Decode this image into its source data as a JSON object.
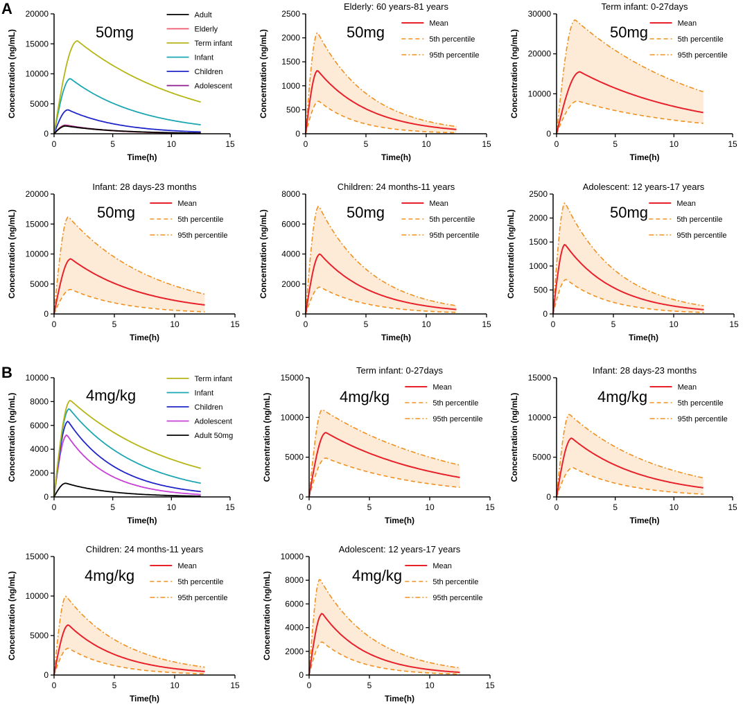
{
  "figure": {
    "panel_labels": [
      "A",
      "B"
    ],
    "legend_labels": {
      "mean": "Mean",
      "p5": "5th percentile",
      "p95": "95th percentile"
    }
  },
  "colors": {
    "mean": "#e8202a",
    "percentile": "#f0901e",
    "band": "#fdebd8",
    "Adult": "#000000",
    "Elderly": "#f0576b",
    "Term infant": "#b5b515",
    "Infant": "#1aa6b0",
    "Children": "#1f24c8",
    "Adolescent": "#8e1a8e",
    "Adolescent_B": "#c63fd6",
    "Adult 50mg": "#000000"
  },
  "chart_data": [
    {
      "id": "A1",
      "type": "line",
      "panel": "A",
      "title": "",
      "dose_label": "50mg",
      "xlabel": "Time(h)",
      "ylabel": "Concentration (ng/mL)",
      "xlim": [
        0,
        15
      ],
      "xticks": [
        0,
        5,
        10,
        15
      ],
      "ylim": [
        0,
        20000
      ],
      "yticks": [
        0,
        5000,
        10000,
        15000,
        20000
      ],
      "series": [
        {
          "name": "Adult",
          "color_key": "Adult",
          "peak": 1300,
          "tmax": 1.0,
          "end": 100
        },
        {
          "name": "Elderly",
          "color_key": "Elderly",
          "peak": 1350,
          "tmax": 1.0,
          "end": 80
        },
        {
          "name": "Term infant",
          "color_key": "Term infant",
          "peak": 15500,
          "tmax": 2.0,
          "end": 5300
        },
        {
          "name": "Infant",
          "color_key": "Infant",
          "peak": 9200,
          "tmax": 1.4,
          "end": 1500
        },
        {
          "name": "Children",
          "color_key": "Children",
          "peak": 4000,
          "tmax": 1.2,
          "end": 300
        },
        {
          "name": "Adolescent",
          "color_key": "Adolescent",
          "peak": 1450,
          "tmax": 1.0,
          "end": 80
        }
      ]
    },
    {
      "id": "A2",
      "type": "line",
      "panel": "A",
      "title": "Elderly: 60 years-81 years",
      "dose_label": "50mg",
      "xlabel": "Time(h)",
      "ylabel": "Concentration (ng/mL)",
      "xlim": [
        0,
        15
      ],
      "xticks": [
        0,
        5,
        10,
        15
      ],
      "ylim": [
        0,
        2500
      ],
      "yticks": [
        0,
        500,
        1000,
        1500,
        2000,
        2500
      ],
      "band": {
        "mean": {
          "peak": 1320,
          "tmax": 1.0,
          "end": 90
        },
        "p5": {
          "peak": 680,
          "tmax": 1.1,
          "end": 20
        },
        "p95": {
          "peak": 2110,
          "tmax": 1.0,
          "end": 150
        }
      }
    },
    {
      "id": "A3",
      "type": "line",
      "panel": "A",
      "title": "Term infant: 0-27days",
      "dose_label": "50mg",
      "xlabel": "Time(h)",
      "ylabel": "Concentration (ng/mL)",
      "xlim": [
        0,
        15
      ],
      "xticks": [
        0,
        5,
        10,
        15
      ],
      "ylim": [
        0,
        30000
      ],
      "yticks": [
        0,
        10000,
        20000,
        30000
      ],
      "band": {
        "mean": {
          "peak": 15500,
          "tmax": 2.0,
          "end": 5300
        },
        "p5": {
          "peak": 8200,
          "tmax": 1.8,
          "end": 2600
        },
        "p95": {
          "peak": 28500,
          "tmax": 1.6,
          "end": 10500
        }
      }
    },
    {
      "id": "A4",
      "type": "line",
      "panel": "A",
      "title": "Infant: 28 days-23 months",
      "dose_label": "50mg",
      "xlabel": "Time(h)",
      "ylabel": "Concentration (ng/mL)",
      "xlim": [
        0,
        15
      ],
      "xticks": [
        0,
        5,
        10,
        15
      ],
      "ylim": [
        0,
        20000
      ],
      "yticks": [
        0,
        5000,
        10000,
        15000,
        20000
      ],
      "band": {
        "mean": {
          "peak": 9200,
          "tmax": 1.4,
          "end": 1500
        },
        "p5": {
          "peak": 4100,
          "tmax": 1.4,
          "end": 350
        },
        "p95": {
          "peak": 16200,
          "tmax": 1.2,
          "end": 3300
        }
      }
    },
    {
      "id": "A5",
      "type": "line",
      "panel": "A",
      "title": "Children: 24 months-11 years",
      "dose_label": "50mg",
      "xlabel": "Time(h)",
      "ylabel": "Concentration (ng/mL)",
      "xlim": [
        0,
        15
      ],
      "xticks": [
        0,
        5,
        10,
        15
      ],
      "ylim": [
        0,
        8000
      ],
      "yticks": [
        0,
        2000,
        4000,
        6000,
        8000
      ],
      "band": {
        "mean": {
          "peak": 4000,
          "tmax": 1.2,
          "end": 300
        },
        "p5": {
          "peak": 1800,
          "tmax": 1.2,
          "end": 100
        },
        "p95": {
          "peak": 7200,
          "tmax": 1.1,
          "end": 550
        }
      }
    },
    {
      "id": "A6",
      "type": "line",
      "panel": "A",
      "title": "Adolescent: 12 years-17 years",
      "dose_label": "50mg",
      "xlabel": "Time(h)",
      "ylabel": "Concentration (ng/mL)",
      "xlim": [
        0,
        15
      ],
      "xticks": [
        0,
        5,
        10,
        15
      ],
      "ylim": [
        0,
        2500
      ],
      "yticks": [
        0,
        500,
        1000,
        1500,
        2000,
        2500
      ],
      "band": {
        "mean": {
          "peak": 1450,
          "tmax": 1.0,
          "end": 90
        },
        "p5": {
          "peak": 720,
          "tmax": 1.1,
          "end": 30
        },
        "p95": {
          "peak": 2320,
          "tmax": 1.0,
          "end": 170
        }
      }
    },
    {
      "id": "B1",
      "type": "line",
      "panel": "B",
      "title": "",
      "dose_label": "4mg/kg",
      "xlabel": "Time(h)",
      "ylabel": "Concentration (ng/mL)",
      "xlim": [
        0,
        15
      ],
      "xticks": [
        0,
        5,
        10,
        15
      ],
      "ylim": [
        0,
        10000
      ],
      "yticks": [
        0,
        2000,
        4000,
        6000,
        8000,
        10000
      ],
      "series": [
        {
          "name": "Term infant",
          "color_key": "Term infant",
          "peak": 8100,
          "tmax": 1.4,
          "end": 2400
        },
        {
          "name": "Infant",
          "color_key": "Infant",
          "peak": 7400,
          "tmax": 1.3,
          "end": 1150
        },
        {
          "name": "Children",
          "color_key": "Children",
          "peak": 6350,
          "tmax": 1.2,
          "end": 450
        },
        {
          "name": "Adolescent",
          "color_key": "Adolescent_B",
          "peak": 5200,
          "tmax": 1.1,
          "end": 200
        },
        {
          "name": "Adult 50mg",
          "color_key": "Adult 50mg",
          "peak": 1150,
          "tmax": 1.0,
          "end": 60
        }
      ]
    },
    {
      "id": "B2",
      "type": "line",
      "panel": "B",
      "title": "Term infant: 0-27days",
      "dose_label": "4mg/kg",
      "xlabel": "Time(h)",
      "ylabel": "Concentration (ng/mL)",
      "xlim": [
        0,
        15
      ],
      "xticks": [
        0,
        5,
        10,
        15
      ],
      "ylim": [
        0,
        15000
      ],
      "yticks": [
        0,
        5000,
        10000,
        15000
      ],
      "band": {
        "mean": {
          "peak": 8100,
          "tmax": 1.4,
          "end": 2450
        },
        "p5": {
          "peak": 4900,
          "tmax": 1.4,
          "end": 1200
        },
        "p95": {
          "peak": 11000,
          "tmax": 1.1,
          "end": 4000
        }
      }
    },
    {
      "id": "B3",
      "type": "line",
      "panel": "B",
      "title": "Infant: 28 days-23 months",
      "dose_label": "4mg/kg",
      "xlabel": "Time(h)",
      "ylabel": "Concentration (ng/mL)",
      "xlim": [
        0,
        15
      ],
      "xticks": [
        0,
        5,
        10,
        15
      ],
      "ylim": [
        0,
        15000
      ],
      "yticks": [
        0,
        5000,
        10000,
        15000
      ],
      "band": {
        "mean": {
          "peak": 7400,
          "tmax": 1.3,
          "end": 1150
        },
        "p5": {
          "peak": 3700,
          "tmax": 1.4,
          "end": 350
        },
        "p95": {
          "peak": 10400,
          "tmax": 1.1,
          "end": 2400
        }
      }
    },
    {
      "id": "B4",
      "type": "line",
      "panel": "B",
      "title": "Children: 24 months-11 years",
      "dose_label": "4mg/kg",
      "xlabel": "Time(h)",
      "ylabel": "Concentration (ng/mL)",
      "xlim": [
        0,
        15
      ],
      "xticks": [
        0,
        5,
        10,
        15
      ],
      "ylim": [
        0,
        15000
      ],
      "yticks": [
        0,
        5000,
        10000,
        15000
      ],
      "band": {
        "mean": {
          "peak": 6350,
          "tmax": 1.2,
          "end": 450
        },
        "p5": {
          "peak": 3400,
          "tmax": 1.2,
          "end": 150
        },
        "p95": {
          "peak": 10000,
          "tmax": 1.0,
          "end": 1000
        }
      }
    },
    {
      "id": "B5",
      "type": "line",
      "panel": "B",
      "title": "Adolescent: 12 years-17 years",
      "dose_label": "4mg/kg",
      "xlabel": "Time(h)",
      "ylabel": "Concentration (ng/mL)",
      "xlim": [
        0,
        15
      ],
      "xticks": [
        0,
        5,
        10,
        15
      ],
      "ylim": [
        0,
        10000
      ],
      "yticks": [
        0,
        2000,
        4000,
        6000,
        8000,
        10000
      ],
      "band": {
        "mean": {
          "peak": 5200,
          "tmax": 1.1,
          "end": 230
        },
        "p5": {
          "peak": 2800,
          "tmax": 1.1,
          "end": 80
        },
        "p95": {
          "peak": 8100,
          "tmax": 0.9,
          "end": 600
        }
      }
    }
  ]
}
